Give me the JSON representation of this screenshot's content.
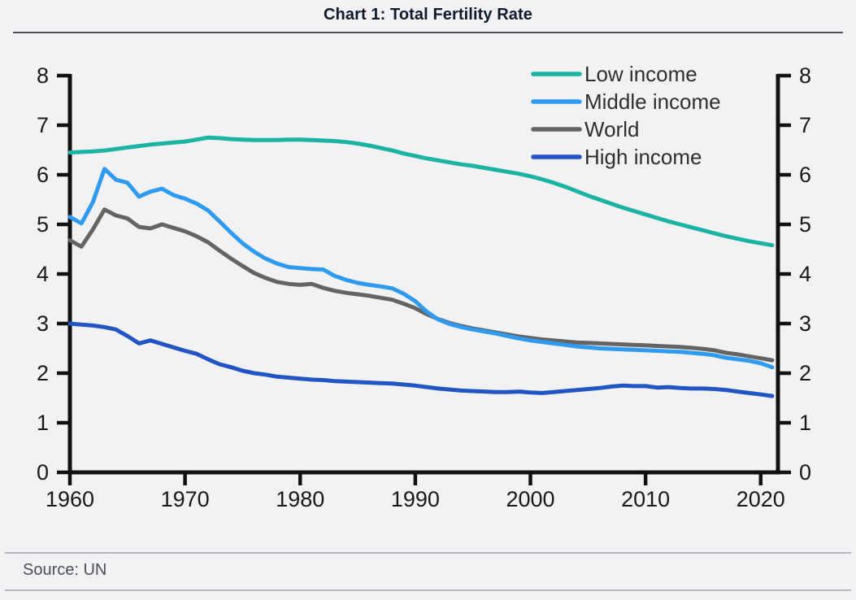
{
  "page": {
    "title": "Chart 1: Total Fertility Rate",
    "source": "Source: UN",
    "background": "#f2f2f4",
    "title_color": "#101a2b",
    "rule_dark": "#4a4f59",
    "rule_light": "#b5b8be",
    "axis_color": "#111111",
    "tick_label_color": "#191919",
    "legend_text_color": "#2f2f2f"
  },
  "chart_data": {
    "type": "line",
    "title": "Chart 1: Total Fertility Rate",
    "source": "Source: UN",
    "xlabel": "",
    "ylabel": "",
    "xlim": [
      1960,
      2021.5
    ],
    "ylim": [
      0,
      8
    ],
    "x_ticks": [
      1960,
      1970,
      1980,
      1990,
      2000,
      2010,
      2020
    ],
    "y_ticks": [
      0,
      1,
      2,
      3,
      4,
      5,
      6,
      7,
      8
    ],
    "dual_y_axis": true,
    "grid": false,
    "legend_position": "top-right",
    "x": [
      1960,
      1961,
      1962,
      1963,
      1964,
      1965,
      1966,
      1967,
      1968,
      1969,
      1970,
      1971,
      1972,
      1973,
      1974,
      1975,
      1976,
      1977,
      1978,
      1979,
      1980,
      1981,
      1982,
      1983,
      1984,
      1985,
      1986,
      1987,
      1988,
      1989,
      1990,
      1991,
      1992,
      1993,
      1994,
      1995,
      1996,
      1997,
      1998,
      1999,
      2000,
      2001,
      2002,
      2003,
      2004,
      2005,
      2006,
      2007,
      2008,
      2009,
      2010,
      2011,
      2012,
      2013,
      2014,
      2015,
      2016,
      2017,
      2018,
      2019,
      2020,
      2021
    ],
    "series": [
      {
        "name": "Low income",
        "color": "#1cb3a2",
        "values": [
          6.45,
          6.46,
          6.47,
          6.49,
          6.52,
          6.55,
          6.58,
          6.61,
          6.63,
          6.65,
          6.67,
          6.71,
          6.75,
          6.74,
          6.72,
          6.71,
          6.7,
          6.7,
          6.7,
          6.71,
          6.71,
          6.7,
          6.69,
          6.68,
          6.66,
          6.63,
          6.59,
          6.54,
          6.49,
          6.43,
          6.38,
          6.33,
          6.29,
          6.25,
          6.21,
          6.18,
          6.14,
          6.1,
          6.06,
          6.02,
          5.97,
          5.91,
          5.84,
          5.76,
          5.67,
          5.58,
          5.5,
          5.42,
          5.34,
          5.27,
          5.2,
          5.13,
          5.06,
          5.0,
          4.94,
          4.88,
          4.82,
          4.76,
          4.71,
          4.66,
          4.62,
          4.58
        ]
      },
      {
        "name": "Middle income",
        "color": "#2f9bf0",
        "values": [
          5.15,
          5.02,
          5.45,
          6.12,
          5.9,
          5.84,
          5.56,
          5.66,
          5.72,
          5.59,
          5.52,
          5.42,
          5.28,
          5.06,
          4.83,
          4.62,
          4.45,
          4.31,
          4.21,
          4.14,
          4.12,
          4.1,
          4.09,
          3.96,
          3.88,
          3.82,
          3.78,
          3.75,
          3.71,
          3.6,
          3.45,
          3.24,
          3.08,
          2.99,
          2.93,
          2.88,
          2.84,
          2.8,
          2.75,
          2.7,
          2.66,
          2.63,
          2.6,
          2.57,
          2.54,
          2.52,
          2.5,
          2.49,
          2.48,
          2.47,
          2.46,
          2.45,
          2.44,
          2.43,
          2.41,
          2.39,
          2.36,
          2.31,
          2.28,
          2.25,
          2.2,
          2.12
        ]
      },
      {
        "name": "World",
        "color": "#646464",
        "values": [
          4.68,
          4.55,
          4.9,
          5.3,
          5.18,
          5.12,
          4.95,
          4.92,
          5.0,
          4.93,
          4.86,
          4.76,
          4.64,
          4.47,
          4.31,
          4.16,
          4.02,
          3.92,
          3.84,
          3.8,
          3.78,
          3.8,
          3.72,
          3.66,
          3.62,
          3.59,
          3.56,
          3.52,
          3.48,
          3.4,
          3.31,
          3.19,
          3.09,
          3.01,
          2.95,
          2.9,
          2.86,
          2.82,
          2.78,
          2.74,
          2.71,
          2.68,
          2.66,
          2.64,
          2.62,
          2.61,
          2.6,
          2.59,
          2.58,
          2.57,
          2.56,
          2.55,
          2.54,
          2.53,
          2.51,
          2.49,
          2.46,
          2.41,
          2.38,
          2.34,
          2.3,
          2.26
        ]
      },
      {
        "name": "High income",
        "color": "#2255c4",
        "values": [
          3.0,
          2.98,
          2.96,
          2.93,
          2.88,
          2.75,
          2.6,
          2.66,
          2.59,
          2.52,
          2.45,
          2.39,
          2.28,
          2.18,
          2.12,
          2.05,
          2.0,
          1.97,
          1.93,
          1.91,
          1.89,
          1.87,
          1.86,
          1.84,
          1.83,
          1.82,
          1.81,
          1.8,
          1.79,
          1.77,
          1.75,
          1.72,
          1.69,
          1.67,
          1.65,
          1.64,
          1.63,
          1.62,
          1.62,
          1.63,
          1.61,
          1.6,
          1.62,
          1.64,
          1.66,
          1.68,
          1.7,
          1.73,
          1.75,
          1.74,
          1.74,
          1.71,
          1.72,
          1.7,
          1.69,
          1.69,
          1.68,
          1.66,
          1.63,
          1.6,
          1.57,
          1.54
        ]
      }
    ]
  }
}
